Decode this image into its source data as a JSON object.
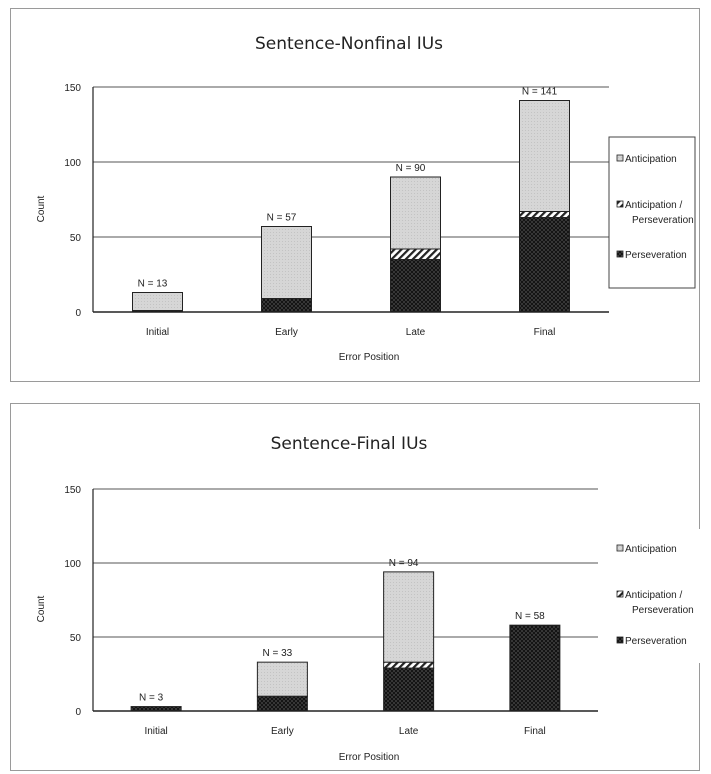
{
  "chart_data": [
    {
      "type": "bar",
      "stacked": true,
      "title": "Sentence-Nonfinal IUs",
      "xlabel": "Error Position",
      "ylabel": "Count",
      "ylim": [
        0,
        150
      ],
      "yticks": [
        "0",
        "50",
        "100",
        "150"
      ],
      "grid": true,
      "legend_position": "right",
      "categories": [
        "Initial",
        "Early",
        "Late",
        "Final"
      ],
      "series": [
        {
          "name": "Perseveration",
          "pattern": "dotted-black",
          "values": [
            1,
            9,
            35,
            63
          ]
        },
        {
          "name": "Anticipation / Perseveration",
          "pattern": "striped",
          "values": [
            0,
            0,
            7,
            4
          ]
        },
        {
          "name": "Anticipation",
          "pattern": "light-grey",
          "values": [
            12,
            48,
            48,
            74
          ]
        }
      ],
      "totals": [
        "N = 13",
        "N = 57",
        "N = 90",
        "N = 141"
      ]
    },
    {
      "type": "bar",
      "stacked": true,
      "title": "Sentence-Final IUs",
      "xlabel": "Error Position",
      "ylabel": "Count",
      "ylim": [
        0,
        150
      ],
      "yticks": [
        "0",
        "50",
        "100",
        "150"
      ],
      "grid": true,
      "legend_position": "right",
      "categories": [
        "Initial",
        "Early",
        "Late",
        "Final"
      ],
      "series": [
        {
          "name": "Perseveration",
          "pattern": "dotted-black",
          "values": [
            3,
            10,
            29,
            58
          ]
        },
        {
          "name": "Anticipation / Perseveration",
          "pattern": "striped",
          "values": [
            0,
            0,
            4,
            0
          ]
        },
        {
          "name": "Anticipation",
          "pattern": "light-grey",
          "values": [
            0,
            23,
            61,
            0
          ]
        }
      ],
      "totals": [
        "N = 3",
        "N = 33",
        "N = 94",
        "N = 58"
      ]
    }
  ],
  "legend": {
    "items": [
      "Anticipation",
      "Anticipation /",
      "Perseveration",
      "Perseveration"
    ]
  },
  "colors": {
    "grid": "#555555",
    "axis": "#222222",
    "bar_outline": "#222222",
    "anticipation_fill": "#d4d4d4",
    "perseveration_fill": "#141414"
  }
}
